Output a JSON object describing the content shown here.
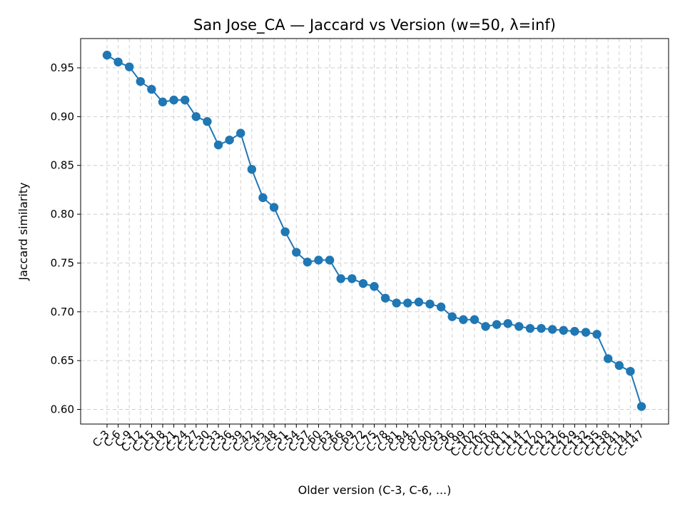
{
  "chart_data": {
    "type": "line",
    "title": "San Jose_CA — Jaccard vs Version (w=50, λ=inf)",
    "xlabel": "Older version (C-3, C-6, ...)",
    "ylabel": "Jaccard similarity",
    "ylim": [
      0.585,
      0.98
    ],
    "yticks": [
      "0.60",
      "0.65",
      "0.70",
      "0.75",
      "0.80",
      "0.85",
      "0.90",
      "0.95"
    ],
    "grid": true,
    "color": "#1f77b4",
    "categories": [
      "C-3",
      "C-6",
      "C-9",
      "C-12",
      "C-15",
      "C-18",
      "C-21",
      "C-24",
      "C-27",
      "C-30",
      "C-33",
      "C-36",
      "C-39",
      "C-42",
      "C-45",
      "C-48",
      "C-51",
      "C-54",
      "C-57",
      "C-60",
      "C-63",
      "C-66",
      "C-69",
      "C-72",
      "C-75",
      "C-78",
      "C-81",
      "C-84",
      "C-87",
      "C-90",
      "C-93",
      "C-96",
      "C-99",
      "C-102",
      "C-105",
      "C-108",
      "C-111",
      "C-114",
      "C-117",
      "C-120",
      "C-123",
      "C-126",
      "C-129",
      "C-132",
      "C-135",
      "C-138",
      "C-141",
      "C-144",
      "C-147"
    ],
    "values": [
      0.963,
      0.956,
      0.951,
      0.936,
      0.928,
      0.915,
      0.917,
      0.917,
      0.9,
      0.895,
      0.871,
      0.876,
      0.883,
      0.846,
      0.817,
      0.807,
      0.782,
      0.761,
      0.751,
      0.753,
      0.753,
      0.734,
      0.734,
      0.729,
      0.726,
      0.714,
      0.709,
      0.709,
      0.71,
      0.708,
      0.705,
      0.695,
      0.692,
      0.692,
      0.685,
      0.687,
      0.688,
      0.685,
      0.683,
      0.683,
      0.682,
      0.681,
      0.68,
      0.679,
      0.677,
      0.652,
      0.645,
      0.639,
      0.603
    ]
  }
}
